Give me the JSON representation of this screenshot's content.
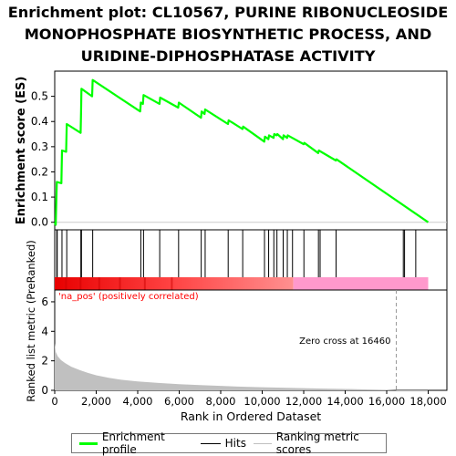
{
  "title_lines": [
    "Enrichment plot: CL10567, PURINE RIBONUCLEOSIDE",
    "MONOPHOSPHATE BIOSYNTHETIC PROCESS, AND",
    "URIDINE-DIPHOSPHATASE ACTIVITY"
  ],
  "colors": {
    "enrichment_line": "#00ff00",
    "hits": "#000000",
    "metric_fill": "#c0c0c0",
    "pos_band": "#ff0000",
    "neg_band": "#ff99cc",
    "pos_label": "#ff0000",
    "zero_line": "#999999"
  },
  "legend": [
    {
      "label": "Enrichment profile",
      "color": "#00ff00"
    },
    {
      "label": "Hits",
      "color": "#000000"
    },
    {
      "label": "Ranking metric scores",
      "color": "#c0c0c0"
    }
  ],
  "chart_data": {
    "type": "line",
    "x_label": "Rank in Ordered Dataset",
    "x_ticks": [
      0,
      2000,
      4000,
      6000,
      8000,
      10000,
      12000,
      14000,
      16000,
      18000
    ],
    "x_tick_labels": [
      "0",
      "2,000",
      "4,000",
      "6,000",
      "8,000",
      "10,000",
      "12,000",
      "14,000",
      "16,000",
      "18,000"
    ],
    "xlim": [
      0,
      18900
    ],
    "es_panel": {
      "ylabel": "Enrichment score (ES)",
      "ylim": [
        -0.03,
        0.6
      ],
      "y_ticks": [
        0.0,
        0.1,
        0.2,
        0.3,
        0.4,
        0.5
      ],
      "y_tick_labels": [
        "0.0",
        "0.1",
        "0.2",
        "0.3",
        "0.4",
        "0.5"
      ],
      "grid": false,
      "points": [
        [
          0,
          0.0
        ],
        [
          50,
          -0.01
        ],
        [
          100,
          0.16
        ],
        [
          320,
          0.155
        ],
        [
          350,
          0.285
        ],
        [
          550,
          0.28
        ],
        [
          580,
          0.39
        ],
        [
          1250,
          0.355
        ],
        [
          1270,
          0.44
        ],
        [
          1290,
          0.53
        ],
        [
          1800,
          0.5
        ],
        [
          1830,
          0.565
        ],
        [
          4120,
          0.44
        ],
        [
          4150,
          0.475
        ],
        [
          4250,
          0.47
        ],
        [
          4280,
          0.505
        ],
        [
          5050,
          0.47
        ],
        [
          5080,
          0.495
        ],
        [
          5950,
          0.455
        ],
        [
          5980,
          0.475
        ],
        [
          7050,
          0.415
        ],
        [
          7080,
          0.44
        ],
        [
          7220,
          0.43
        ],
        [
          7250,
          0.448
        ],
        [
          8350,
          0.39
        ],
        [
          8380,
          0.405
        ],
        [
          9050,
          0.37
        ],
        [
          9080,
          0.38
        ],
        [
          10100,
          0.32
        ],
        [
          10130,
          0.34
        ],
        [
          10300,
          0.33
        ],
        [
          10330,
          0.345
        ],
        [
          10550,
          0.335
        ],
        [
          10580,
          0.35
        ],
        [
          10700,
          0.345
        ],
        [
          10730,
          0.35
        ],
        [
          11000,
          0.33
        ],
        [
          11030,
          0.345
        ],
        [
          11200,
          0.335
        ],
        [
          11230,
          0.345
        ],
        [
          11450,
          0.335
        ],
        [
          12000,
          0.31
        ],
        [
          12030,
          0.315
        ],
        [
          12700,
          0.275
        ],
        [
          12730,
          0.285
        ],
        [
          13550,
          0.245
        ],
        [
          13580,
          0.25
        ],
        [
          18000,
          0.0
        ]
      ]
    },
    "hits": [
      100,
      120,
      350,
      580,
      1260,
      1290,
      1830,
      4150,
      4280,
      5060,
      5970,
      7060,
      7250,
      8360,
      9060,
      10110,
      10310,
      10560,
      10710,
      11010,
      11210,
      11460,
      12010,
      12710,
      12790,
      13560,
      16800,
      16860,
      17400
    ],
    "ranked_metric": {
      "ylabel": "Ranked list metric (PreRanked)",
      "ylim": [
        0,
        6.8
      ],
      "y_ticks": [
        0,
        2,
        4,
        6
      ],
      "y_tick_labels": [
        "0",
        "2",
        "4",
        "6"
      ],
      "profile": [
        [
          0,
          3.2
        ],
        [
          50,
          2.6
        ],
        [
          150,
          2.3
        ],
        [
          300,
          2.05
        ],
        [
          500,
          1.85
        ],
        [
          800,
          1.6
        ],
        [
          1200,
          1.38
        ],
        [
          1600,
          1.18
        ],
        [
          2000,
          1.02
        ],
        [
          2600,
          0.85
        ],
        [
          3200,
          0.72
        ],
        [
          4000,
          0.6
        ],
        [
          5000,
          0.5
        ],
        [
          6000,
          0.42
        ],
        [
          7000,
          0.36
        ],
        [
          8000,
          0.3
        ],
        [
          9000,
          0.25
        ],
        [
          10000,
          0.21
        ],
        [
          11000,
          0.18
        ],
        [
          12000,
          0.15
        ],
        [
          13000,
          0.12
        ],
        [
          14000,
          0.09
        ],
        [
          15000,
          0.06
        ],
        [
          16000,
          0.03
        ],
        [
          16460,
          0.0
        ],
        [
          17000,
          -0.05
        ],
        [
          18000,
          -0.12
        ]
      ],
      "zero_cross_rank": 16460,
      "annotations": [
        "Zero cross at 16460"
      ]
    },
    "band_labels": {
      "positive": "'na_pos' (positively correlated)"
    }
  }
}
